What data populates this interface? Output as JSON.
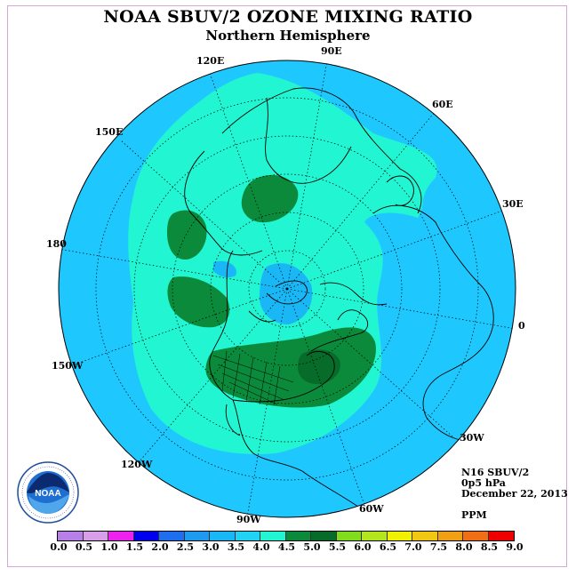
{
  "title": "NOAA SBUV/2 OZONE MIXING RATIO",
  "subtitle": "Northern Hemisphere",
  "longitude_labels": [
    "90E",
    "60E",
    "30E",
    "0",
    "30W",
    "60W",
    "90W",
    "120W",
    "150W",
    "180",
    "150E",
    "120E"
  ],
  "info": {
    "satellite": "N16 SBUV/2",
    "pressure": "0p5 hPa",
    "date": "December 22, 2013",
    "units": "PPM"
  },
  "colorbar": {
    "ticks": [
      "0.0",
      "0.5",
      "1.0",
      "1.5",
      "2.0",
      "2.5",
      "3.0",
      "3.5",
      "4.0",
      "4.5",
      "5.0",
      "5.5",
      "6.0",
      "6.5",
      "7.0",
      "7.5",
      "8.0",
      "8.5",
      "9.0"
    ],
    "colors": [
      "#b77fe8",
      "#d89ee8",
      "#ee22ee",
      "#0000ee",
      "#1e6ef0",
      "#1e9bf0",
      "#19b7f5",
      "#22d2f5",
      "#22f5d2",
      "#0a8a3a",
      "#076b2a",
      "#82dc1e",
      "#b4e61e",
      "#f0f000",
      "#f0c814",
      "#f0a014",
      "#f06e14",
      "#ee0000",
      "#8b5a3c"
    ]
  },
  "map_colors": {
    "ocean_band": "#1ec8ff",
    "mid_band": "#22f5d2",
    "high_band": "#0a8a3a",
    "peak": "#076b2a",
    "pole_low": "#19b7f5",
    "outline": "#000000"
  },
  "logo": {
    "text": "NOAA",
    "ring_text": "NATIONAL OCEANIC AND ATMOSPHERIC ADMINISTRATION · U.S. DEPARTMENT OF COMMERCE"
  }
}
